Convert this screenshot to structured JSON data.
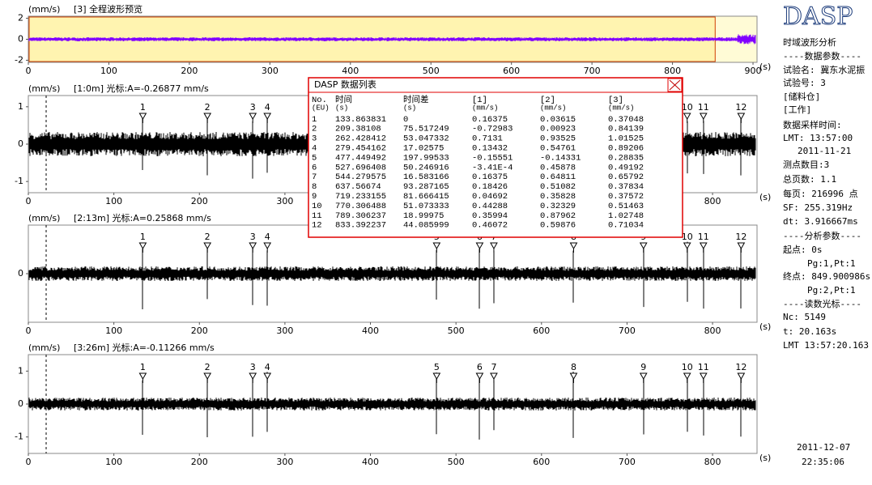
{
  "preview": {
    "unit": "(mm/s)",
    "title": "[3] 全程波形预览",
    "yticks": [
      -2,
      0,
      2
    ],
    "ylim": [
      -2.2,
      2.2
    ],
    "xticks": [
      0,
      100,
      200,
      300,
      400,
      500,
      600,
      700,
      800,
      900
    ],
    "xlim": [
      0,
      905
    ],
    "x_unit": "(s)"
  },
  "panels": [
    {
      "unit": "(mm/s)",
      "title": "[1:0m] 光标:A=-0.26877 mm/s",
      "yticks": [
        -1,
        0,
        1
      ],
      "ylim": [
        -1.3,
        1.3
      ],
      "xticks": [
        0,
        100,
        200,
        300,
        400,
        500,
        600,
        700,
        800
      ],
      "xlim": [
        0,
        852
      ],
      "x_unit": "(s)"
    },
    {
      "unit": "(mm/s)",
      "title": "[2:13m] 光标:A=0.25868 mm/s",
      "yticks": [
        0
      ],
      "ylim": [
        -1.4,
        1.4
      ],
      "xticks": [
        0,
        100,
        200,
        300,
        400,
        500,
        600,
        700,
        800
      ],
      "xlim": [
        0,
        852
      ],
      "x_unit": "(s)"
    },
    {
      "unit": "(mm/s)",
      "title": "[3:26m] 光标:A=-0.11266 mm/s",
      "yticks": [
        -1,
        0,
        1
      ],
      "ylim": [
        -1.5,
        1.5
      ],
      "xticks": [
        0,
        100,
        200,
        300,
        400,
        500,
        600,
        700,
        800
      ],
      "xlim": [
        0,
        852
      ],
      "x_unit": "(s)"
    }
  ],
  "dialog": {
    "title": "DASP 数据列表",
    "columns": [
      [
        "No.",
        "(EU)"
      ],
      [
        "时间",
        "(s)"
      ],
      [
        "时间差",
        "(s)"
      ],
      [
        "[1]",
        "(mm/s)"
      ],
      [
        "[2]",
        "(mm/s)"
      ],
      [
        "[3]",
        "(mm/s)"
      ]
    ],
    "rows": [
      [
        "1",
        "133.863831",
        "0",
        "0.16375",
        "0.03615",
        "0.37048"
      ],
      [
        "2",
        "209.38108",
        "75.517249",
        "-0.72983",
        "0.00923",
        "0.84139"
      ],
      [
        "3",
        "262.428412",
        "53.047332",
        "0.7131",
        "0.93525",
        "1.01525"
      ],
      [
        "4",
        "279.454162",
        "17.02575",
        "0.13432",
        "0.54761",
        "0.89206"
      ],
      [
        "5",
        "477.449492",
        "197.99533",
        "-0.15551",
        "-0.14331",
        "0.28835"
      ],
      [
        "6",
        "527.696408",
        "50.246916",
        "-3.41E-4",
        "0.45878",
        "0.49192"
      ],
      [
        "7",
        "544.279575",
        "16.583166",
        "0.16375",
        "0.64811",
        "0.65792"
      ],
      [
        "8",
        "637.56674",
        "93.287165",
        "0.18426",
        "0.51082",
        "0.37834"
      ],
      [
        "9",
        "719.233155",
        "81.666415",
        "0.04692",
        "0.35828",
        "0.37572"
      ],
      [
        "10",
        "770.306488",
        "51.073333",
        "0.44288",
        "0.32329",
        "0.51463"
      ],
      [
        "11",
        "789.306237",
        "18.99975",
        "0.35994",
        "0.87962",
        "1.02748"
      ],
      [
        "12",
        "833.392237",
        "44.085999",
        "0.46072",
        "0.59876",
        "0.71034"
      ]
    ]
  },
  "sidebar": {
    "logo": "DASP",
    "lines": [
      "时域波形分析",
      "----数据参数----",
      "试验名: 冀东水泥振",
      "试验号: 3",
      "[储料仓]",
      "[工作]",
      "数据采样时间:",
      "LMT: 13:57:00",
      "2011-11-21",
      "测点数目:3",
      "总页数: 1.1",
      "每页: 216996 点",
      "SF: 255.319Hz",
      "dt: 3.916667ms",
      "----分析参数----",
      "起点: 0s",
      "Pg:1,Pt:1",
      "终点: 849.900986s",
      "Pg:2,Pt:1",
      "----读数光标----",
      "Nc: 5149",
      "t: 20.163s",
      "LMT 13:57:20.163"
    ]
  },
  "footer": {
    "date": "2011-12-07",
    "time": "22:35:06"
  }
}
